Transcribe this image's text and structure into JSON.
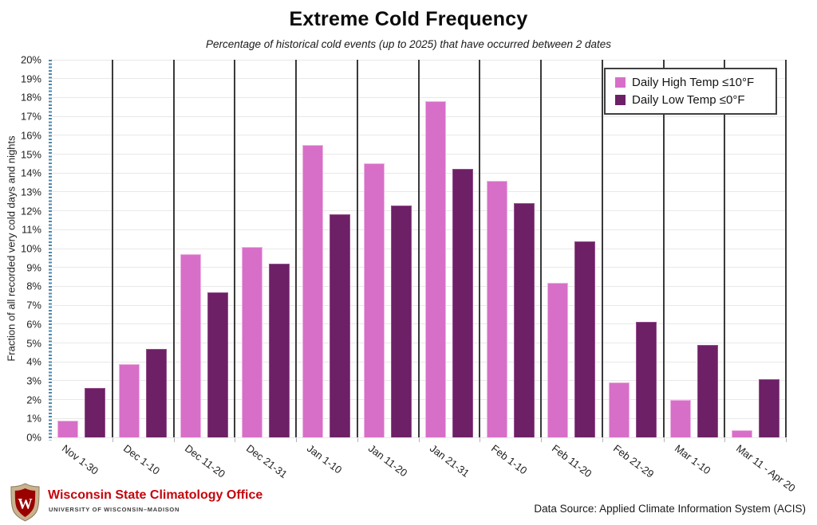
{
  "header": {
    "title": "Extreme Cold Frequency",
    "subtitle": "Percentage of historical cold events (up to 2025) that have occurred between 2 dates"
  },
  "footer": {
    "org_name": "Wisconsin State Climatology Office",
    "university": "UNIVERSITY OF WISCONSIN–MADISON",
    "data_source": "Data Source: Applied Climate Information System (ACIS)",
    "logo": "uw-crest-shield-with-W",
    "org_color": "#c5050c",
    "crest_outer_color": "#c9b28e",
    "crest_inner_color": "#9b0000",
    "crest_letter": "W"
  },
  "colors": {
    "series_high": "#d76fc8",
    "series_low": "#6d2066",
    "group_separator": "#3a3a3a",
    "gridline": "#e8e8e8",
    "y_axis_ticks": "#4d87aa"
  },
  "chart_data": {
    "type": "bar",
    "title": "Extreme Cold Frequency",
    "subtitle": "Percentage of historical cold events (up to 2025) that have occurred between 2 dates",
    "ylabel": "Fraction of all recorded very cold days and nights",
    "xlabel": "",
    "ylim": [
      0,
      20
    ],
    "ytick_step": 1,
    "ytick_suffix": "%",
    "grid": true,
    "legend_position": "top-right",
    "categories": [
      "Nov 1-30",
      "Dec 1-10",
      "Dec 11-20",
      "Dec 21-31",
      "Jan 1-10",
      "Jan 11-20",
      "Jan 21-31",
      "Feb 1-10",
      "Feb 11-20",
      "Feb 21-29",
      "Mar 1-10",
      "Mar 11 - Apr 20"
    ],
    "series": [
      {
        "name": "Daily High Temp ≤10°F",
        "color": "#d76fc8",
        "values": [
          0.9,
          3.9,
          9.7,
          10.1,
          15.5,
          14.5,
          17.8,
          13.6,
          8.2,
          2.9,
          2.0,
          0.4
        ]
      },
      {
        "name": "Daily Low Temp ≤0°F",
        "color": "#6d2066",
        "values": [
          2.6,
          4.7,
          7.7,
          9.2,
          11.8,
          12.3,
          14.2,
          12.4,
          10.4,
          6.1,
          4.9,
          3.1
        ]
      }
    ]
  }
}
